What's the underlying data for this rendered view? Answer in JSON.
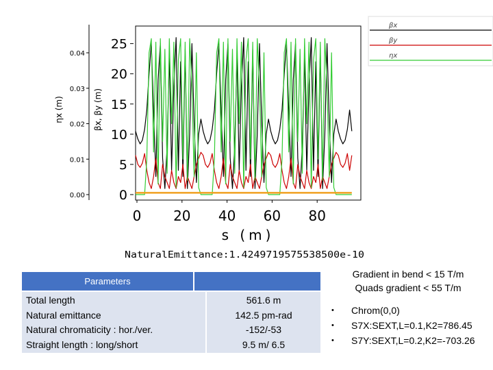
{
  "chart_data": {
    "type": "line",
    "title": "",
    "xlabel": "s (m)",
    "ylabel_left": "ηx (m)",
    "ylabel_right": "βx, βy (m)",
    "xlim": [
      0,
      100
    ],
    "left_ticks": [
      "0.04",
      "0.03",
      "0.02",
      "0.01",
      "0.00"
    ],
    "left_ylim": [
      0,
      0.046
    ],
    "right_ticks": [
      "25",
      "20",
      "15",
      "10",
      "5",
      "0"
    ],
    "right_ylim": [
      0,
      27
    ],
    "x_ticks": [
      "0",
      "20",
      "40",
      "60",
      "80"
    ],
    "x_tick_values": [
      0,
      20,
      40,
      60,
      80
    ],
    "legend": [
      "βx",
      "βy",
      "ηx"
    ],
    "legend_position": "top-right",
    "footer": "NaturalEmittance:1.4249719575538500e-10",
    "series": [
      {
        "name": "βx",
        "color": "#000000",
        "axis": "right",
        "description_points": [
          [
            0,
            10.5
          ],
          [
            1,
            9.2
          ],
          [
            2,
            8.4
          ],
          [
            3,
            9.0
          ],
          [
            4,
            10.8
          ],
          [
            5,
            14
          ],
          [
            6,
            20
          ],
          [
            7,
            25
          ],
          [
            8,
            14
          ],
          [
            9,
            3
          ],
          [
            10,
            19
          ],
          [
            11,
            25
          ],
          [
            12,
            6
          ],
          [
            13,
            1
          ],
          [
            14,
            8
          ],
          [
            15,
            23
          ],
          [
            16,
            4
          ],
          [
            17,
            18
          ],
          [
            18,
            26
          ],
          [
            19,
            4
          ],
          [
            20,
            22
          ],
          [
            21,
            3
          ],
          [
            22,
            24
          ],
          [
            23,
            1
          ],
          [
            24,
            10
          ],
          [
            25,
            25
          ],
          [
            26,
            12
          ],
          [
            27,
            2
          ],
          [
            28,
            10
          ],
          [
            29,
            12.5
          ],
          [
            30,
            10.5
          ],
          [
            31,
            9.2
          ],
          [
            32,
            8.4
          ],
          [
            33,
            9.0
          ],
          [
            34,
            10.8
          ],
          [
            35,
            14
          ],
          [
            36,
            20
          ],
          [
            37,
            25
          ],
          [
            38,
            14
          ],
          [
            39,
            3
          ],
          [
            40,
            19
          ],
          [
            41,
            25
          ],
          [
            42,
            6
          ],
          [
            43,
            1
          ],
          [
            44,
            8
          ],
          [
            45,
            23
          ],
          [
            46,
            4
          ],
          [
            47,
            18
          ],
          [
            48,
            26
          ],
          [
            49,
            4
          ],
          [
            50,
            22
          ],
          [
            51,
            3
          ],
          [
            52,
            24
          ],
          [
            53,
            1
          ],
          [
            54,
            10
          ],
          [
            55,
            25
          ],
          [
            56,
            12
          ],
          [
            57,
            2
          ],
          [
            58,
            10
          ],
          [
            59,
            12.5
          ],
          [
            60,
            10.5
          ],
          [
            61,
            9.2
          ],
          [
            62,
            8.4
          ],
          [
            63,
            9.0
          ],
          [
            64,
            10.8
          ],
          [
            65,
            14
          ],
          [
            66,
            20
          ],
          [
            67,
            25
          ],
          [
            68,
            14
          ],
          [
            69,
            3
          ],
          [
            70,
            19
          ],
          [
            71,
            25
          ],
          [
            72,
            6
          ],
          [
            73,
            1
          ],
          [
            74,
            8
          ],
          [
            75,
            23
          ],
          [
            76,
            4
          ],
          [
            77,
            18
          ],
          [
            78,
            26
          ],
          [
            79,
            4
          ],
          [
            80,
            22
          ],
          [
            81,
            3
          ],
          [
            82,
            24
          ],
          [
            83,
            1
          ],
          [
            84,
            10
          ],
          [
            85,
            25
          ],
          [
            86,
            12
          ],
          [
            87,
            2
          ],
          [
            88,
            10
          ],
          [
            89,
            12.5
          ],
          [
            90,
            10.5
          ],
          [
            91,
            9.2
          ],
          [
            92,
            8.4
          ],
          [
            93,
            9.0
          ],
          [
            94,
            10.8
          ],
          [
            95,
            14
          ],
          [
            96,
            10.5
          ]
        ]
      },
      {
        "name": "βy",
        "color": "#cc0000",
        "axis": "right",
        "description_points": [
          [
            0,
            6.5
          ],
          [
            1,
            5.0
          ],
          [
            2,
            4.5
          ],
          [
            3,
            5.2
          ],
          [
            4,
            6.8
          ],
          [
            5,
            4
          ],
          [
            6,
            2
          ],
          [
            7,
            1
          ],
          [
            8,
            3
          ],
          [
            9,
            6
          ],
          [
            10,
            2
          ],
          [
            11,
            1
          ],
          [
            12,
            5
          ],
          [
            13,
            3
          ],
          [
            14,
            2
          ],
          [
            15,
            1
          ],
          [
            16,
            4
          ],
          [
            17,
            2
          ],
          [
            18,
            1
          ],
          [
            19,
            3
          ],
          [
            20,
            2
          ],
          [
            21,
            5
          ],
          [
            22,
            1
          ],
          [
            23,
            3
          ],
          [
            24,
            2
          ],
          [
            25,
            1
          ],
          [
            26,
            3
          ],
          [
            27,
            5
          ],
          [
            28,
            6
          ],
          [
            29,
            7
          ],
          [
            30,
            6.5
          ],
          [
            31,
            5.0
          ],
          [
            32,
            4.5
          ],
          [
            33,
            5.2
          ],
          [
            34,
            6.8
          ],
          [
            35,
            4
          ],
          [
            36,
            2
          ],
          [
            37,
            1
          ],
          [
            38,
            3
          ],
          [
            39,
            6
          ],
          [
            40,
            2
          ],
          [
            41,
            1
          ],
          [
            42,
            5
          ],
          [
            43,
            3
          ],
          [
            44,
            2
          ],
          [
            45,
            1
          ],
          [
            46,
            4
          ],
          [
            47,
            2
          ],
          [
            48,
            1
          ],
          [
            49,
            3
          ],
          [
            50,
            2
          ],
          [
            51,
            5
          ],
          [
            52,
            1
          ],
          [
            53,
            3
          ],
          [
            54,
            2
          ],
          [
            55,
            1
          ],
          [
            56,
            3
          ],
          [
            57,
            5
          ],
          [
            58,
            6
          ],
          [
            59,
            7
          ],
          [
            60,
            6.5
          ],
          [
            61,
            5.0
          ],
          [
            62,
            4.5
          ],
          [
            63,
            5.2
          ],
          [
            64,
            6.8
          ],
          [
            65,
            4
          ],
          [
            66,
            2
          ],
          [
            67,
            1
          ],
          [
            68,
            3
          ],
          [
            69,
            6
          ],
          [
            70,
            2
          ],
          [
            71,
            1
          ],
          [
            72,
            5
          ],
          [
            73,
            3
          ],
          [
            74,
            2
          ],
          [
            75,
            1
          ],
          [
            76,
            4
          ],
          [
            77,
            2
          ],
          [
            78,
            1
          ],
          [
            79,
            3
          ],
          [
            80,
            2
          ],
          [
            81,
            5
          ],
          [
            82,
            1
          ],
          [
            83,
            3
          ],
          [
            84,
            2
          ],
          [
            85,
            1
          ],
          [
            86,
            3
          ],
          [
            87,
            5
          ],
          [
            88,
            6
          ],
          [
            89,
            7
          ],
          [
            90,
            6.5
          ],
          [
            91,
            5.0
          ],
          [
            92,
            4.5
          ],
          [
            93,
            5.2
          ],
          [
            94,
            6.8
          ],
          [
            95,
            4
          ],
          [
            96,
            6.5
          ]
        ]
      },
      {
        "name": "ηx",
        "color": "#33cc33",
        "axis": "left",
        "description_points": [
          [
            0,
            0
          ],
          [
            4,
            0
          ],
          [
            5,
            0.01
          ],
          [
            6,
            0.04
          ],
          [
            7,
            0.044
          ],
          [
            8,
            0.012
          ],
          [
            9,
            0.043
          ],
          [
            10,
            0.003
          ],
          [
            11,
            0.044
          ],
          [
            12,
            0.015
          ],
          [
            13,
            0.041
          ],
          [
            14,
            0.006
          ],
          [
            15,
            0.044
          ],
          [
            16,
            0.02
          ],
          [
            17,
            0.043
          ],
          [
            18,
            0.002
          ],
          [
            19,
            0.038
          ],
          [
            20,
            0.044
          ],
          [
            21,
            0.01
          ],
          [
            22,
            0.043
          ],
          [
            23,
            0.004
          ],
          [
            24,
            0.044
          ],
          [
            25,
            0.03
          ],
          [
            26,
            0.005
          ],
          [
            27,
            0.04
          ],
          [
            28,
            0.002
          ],
          [
            29,
            0
          ],
          [
            34,
            0
          ],
          [
            35,
            0.01
          ],
          [
            36,
            0.04
          ],
          [
            37,
            0.044
          ],
          [
            38,
            0.012
          ],
          [
            39,
            0.043
          ],
          [
            40,
            0.003
          ],
          [
            41,
            0.044
          ],
          [
            42,
            0.015
          ],
          [
            43,
            0.041
          ],
          [
            44,
            0.006
          ],
          [
            45,
            0.044
          ],
          [
            46,
            0.02
          ],
          [
            47,
            0.043
          ],
          [
            48,
            0.002
          ],
          [
            49,
            0.038
          ],
          [
            50,
            0.044
          ],
          [
            51,
            0.01
          ],
          [
            52,
            0.043
          ],
          [
            53,
            0.004
          ],
          [
            54,
            0.044
          ],
          [
            55,
            0.03
          ],
          [
            56,
            0.005
          ],
          [
            57,
            0.04
          ],
          [
            58,
            0.002
          ],
          [
            59,
            0
          ],
          [
            64,
            0
          ],
          [
            65,
            0.01
          ],
          [
            66,
            0.04
          ],
          [
            67,
            0.044
          ],
          [
            68,
            0.012
          ],
          [
            69,
            0.043
          ],
          [
            70,
            0.003
          ],
          [
            71,
            0.044
          ],
          [
            72,
            0.015
          ],
          [
            73,
            0.041
          ],
          [
            74,
            0.006
          ],
          [
            75,
            0.044
          ],
          [
            76,
            0.02
          ],
          [
            77,
            0.043
          ],
          [
            78,
            0.002
          ],
          [
            79,
            0.038
          ],
          [
            80,
            0.044
          ],
          [
            81,
            0.01
          ],
          [
            82,
            0.043
          ],
          [
            83,
            0.004
          ],
          [
            84,
            0.044
          ],
          [
            85,
            0.03
          ],
          [
            86,
            0.005
          ],
          [
            87,
            0.04
          ],
          [
            88,
            0.002
          ],
          [
            89,
            0
          ],
          [
            96,
            0
          ]
        ]
      },
      {
        "name": "",
        "color": "#f0a020",
        "axis": "right",
        "description_points": [
          [
            0,
            0.3
          ],
          [
            96,
            0.3
          ]
        ]
      }
    ]
  },
  "params": {
    "header": "Parameters",
    "rows": [
      {
        "label": "Total length",
        "value": "561.6 m"
      },
      {
        "label": "Natural emittance",
        "value": "142.5 pm-rad"
      },
      {
        "label": "Natural chromaticity  :  hor./ver.",
        "value": "-152/-53"
      },
      {
        "label": "Straight length  : long/short",
        "value": "9.5 m/ 6.5"
      }
    ]
  },
  "notes": {
    "line1": "Gradient in bend < 15 T/m",
    "line2": "Quads gradient  < 55 T/m",
    "bullets": [
      "Chrom(0,0)",
      "S7X:SEXT,L=0.1,K2=786.45",
      "S7Y:SEXT,L=0.2,K2=-703.26"
    ],
    "bullet_glyph": "•"
  }
}
